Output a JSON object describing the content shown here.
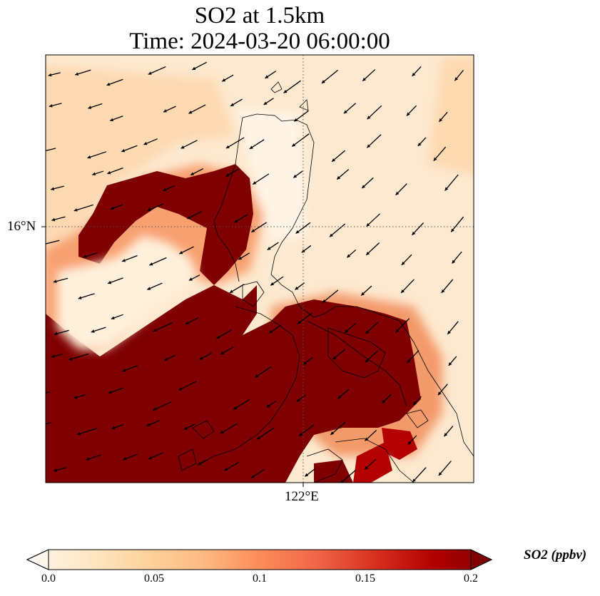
{
  "title": {
    "line1": "SO2 at 1.5km",
    "line2": "Time: 2024-03-20 06:00:00"
  },
  "axes": {
    "lat_label": "16°N",
    "lon_label": "122°E",
    "gridlines": "dotted"
  },
  "colorbar": {
    "label": "SO2 (ppbv)",
    "ticks": [
      "0.0",
      "0.05",
      "0.1",
      "0.15",
      "0.2"
    ],
    "min": 0.0,
    "max": 0.2,
    "extend": "both",
    "colormap": "OrRd",
    "colors": [
      "#fff7ec",
      "#fee8c8",
      "#fdd49e",
      "#fdbb84",
      "#fc8d59",
      "#ef6548",
      "#d7301f",
      "#b30000",
      "#7f0000"
    ]
  },
  "map_features": {
    "field": "SO2 concentration",
    "wind": "quiver arrows",
    "coastlines": "black outline"
  }
}
